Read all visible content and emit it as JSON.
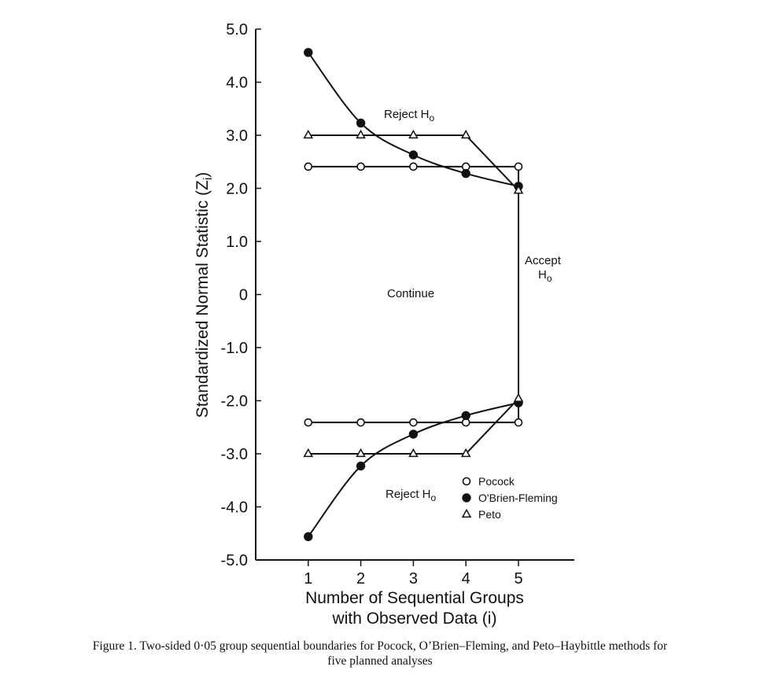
{
  "chart_data": {
    "type": "line",
    "xlabel_lines": [
      "Number of Sequential Groups",
      "with Observed Data (i)"
    ],
    "ylabel": "Standardized Normal Statistic (Z",
    "ylabel_sub": "i",
    "ylabel_close": ")",
    "x_ticks": [
      "1",
      "2",
      "3",
      "4",
      "5"
    ],
    "y_ticks": [
      "5.0",
      "4.0",
      "3.0",
      "2.0",
      "1.0",
      "0",
      "-1.0",
      "-2.0",
      "-3.0",
      "-4.0",
      "-5.0"
    ],
    "xlim": [
      0,
      6.0
    ],
    "ylim": [
      -5.0,
      5.0
    ],
    "grid": false,
    "legend_position": "bottom-right",
    "x": [
      1,
      2,
      3,
      4,
      5
    ],
    "series": [
      {
        "name": "Pocock",
        "marker": "open-circle",
        "upper": [
          2.41,
          2.41,
          2.41,
          2.41,
          2.41
        ],
        "lower": [
          -2.41,
          -2.41,
          -2.41,
          -2.41,
          -2.41
        ]
      },
      {
        "name": "O'Brien-Fleming",
        "marker": "filled-circle",
        "upper": [
          4.56,
          3.23,
          2.63,
          2.28,
          2.04
        ],
        "lower": [
          -4.56,
          -3.23,
          -2.63,
          -2.28,
          -2.04
        ]
      },
      {
        "name": "Peto",
        "marker": "open-triangle",
        "upper": [
          3.0,
          3.0,
          3.0,
          3.0,
          1.96
        ],
        "lower": [
          -3.0,
          -3.0,
          -3.0,
          -3.0,
          -1.96
        ]
      }
    ],
    "annotations": {
      "reject_upper": "Reject H",
      "reject_lower": "Reject H",
      "reject_sub": "o",
      "continue": "Continue",
      "accept_line1": "Accept",
      "accept_line2": "H",
      "accept_sub": "o"
    }
  },
  "caption": {
    "line1": "Figure 1. Two-sided 0·05 group sequential boundaries for Pocock, O’Brien–Fleming, and Peto–Haybittle methods for",
    "line2": "five planned analyses"
  }
}
